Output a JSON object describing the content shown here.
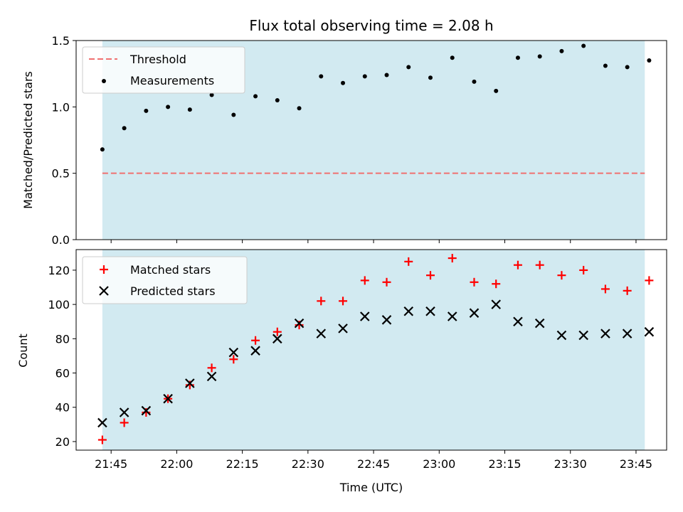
{
  "figure": {
    "title": "Flux total observing time = 2.08 h"
  },
  "colors": {
    "background_span": "#add8e6",
    "threshold": "#f07070",
    "measurement": "#000000",
    "matched": "#ff0000",
    "predicted": "#000000"
  },
  "chart_data": [
    {
      "type": "scatter",
      "ylabel": "Matched/Predicted stars",
      "ylim": [
        0,
        1.5
      ],
      "yticks": [
        0,
        0.5,
        1.0,
        1.5
      ],
      "ytick_labels": [
        "0.0",
        "0.5",
        "1.0",
        "1.5"
      ],
      "xlim": [
        "21:37",
        "23:52"
      ],
      "shaded_span": [
        "21:43",
        "23:47"
      ],
      "legend": {
        "placement": "upper-left",
        "entries": [
          "Threshold",
          "Measurements"
        ]
      },
      "series": [
        {
          "name": "Threshold",
          "kind": "hline",
          "y": 0.5,
          "x": [
            "21:43",
            "23:47"
          ]
        },
        {
          "name": "Measurements",
          "kind": "points",
          "x": [
            "21:43",
            "21:48",
            "21:53",
            "21:58",
            "22:03",
            "22:08",
            "22:13",
            "22:18",
            "22:23",
            "22:28",
            "22:33",
            "22:38",
            "22:43",
            "22:48",
            "22:53",
            "22:58",
            "23:03",
            "23:08",
            "23:13",
            "23:18",
            "23:23",
            "23:28",
            "23:33",
            "23:38",
            "23:43",
            "23:48"
          ],
          "y": [
            0.68,
            0.84,
            0.97,
            1.0,
            0.98,
            1.09,
            0.94,
            1.08,
            1.05,
            0.99,
            1.23,
            1.18,
            1.23,
            1.24,
            1.3,
            1.22,
            1.37,
            1.19,
            1.12,
            1.37,
            1.38,
            1.42,
            1.46,
            1.31,
            1.3,
            1.35
          ]
        }
      ]
    },
    {
      "type": "scatter",
      "xlabel": "Time (UTC)",
      "ylabel": "Count",
      "ylim": [
        15,
        132
      ],
      "yticks": [
        20,
        40,
        60,
        80,
        100,
        120
      ],
      "ytick_labels": [
        "20",
        "40",
        "60",
        "80",
        "100",
        "120"
      ],
      "xlim": [
        "21:37",
        "23:52"
      ],
      "xticks": [
        "21:45",
        "22:00",
        "22:15",
        "22:30",
        "22:45",
        "23:00",
        "23:15",
        "23:30",
        "23:45"
      ],
      "shaded_span": [
        "21:43",
        "23:47"
      ],
      "legend": {
        "placement": "upper-left",
        "entries": [
          "Matched stars",
          "Predicted stars"
        ]
      },
      "series": [
        {
          "name": "Matched stars",
          "marker": "plus",
          "x": [
            "21:43",
            "21:48",
            "21:53",
            "21:58",
            "22:03",
            "22:08",
            "22:13",
            "22:18",
            "22:23",
            "22:28",
            "22:33",
            "22:38",
            "22:43",
            "22:48",
            "22:53",
            "22:58",
            "23:03",
            "23:08",
            "23:13",
            "23:18",
            "23:23",
            "23:28",
            "23:33",
            "23:38",
            "23:43",
            "23:48"
          ],
          "y": [
            21,
            31,
            37,
            45,
            53,
            63,
            68,
            79,
            84,
            88,
            102,
            102,
            114,
            113,
            125,
            117,
            127,
            113,
            112,
            123,
            123,
            117,
            120,
            109,
            108,
            114
          ]
        },
        {
          "name": "Predicted stars",
          "marker": "x",
          "x": [
            "21:43",
            "21:48",
            "21:53",
            "21:58",
            "22:03",
            "22:08",
            "22:13",
            "22:18",
            "22:23",
            "22:28",
            "22:33",
            "22:38",
            "22:43",
            "22:48",
            "22:53",
            "22:58",
            "23:03",
            "23:08",
            "23:13",
            "23:18",
            "23:23",
            "23:28",
            "23:33",
            "23:38",
            "23:43",
            "23:48"
          ],
          "y": [
            31,
            37,
            38,
            45,
            54,
            58,
            72,
            73,
            80,
            89,
            83,
            86,
            93,
            91,
            96,
            96,
            93,
            95,
            100,
            90,
            89,
            82,
            82,
            83,
            83,
            84
          ]
        }
      ]
    }
  ]
}
